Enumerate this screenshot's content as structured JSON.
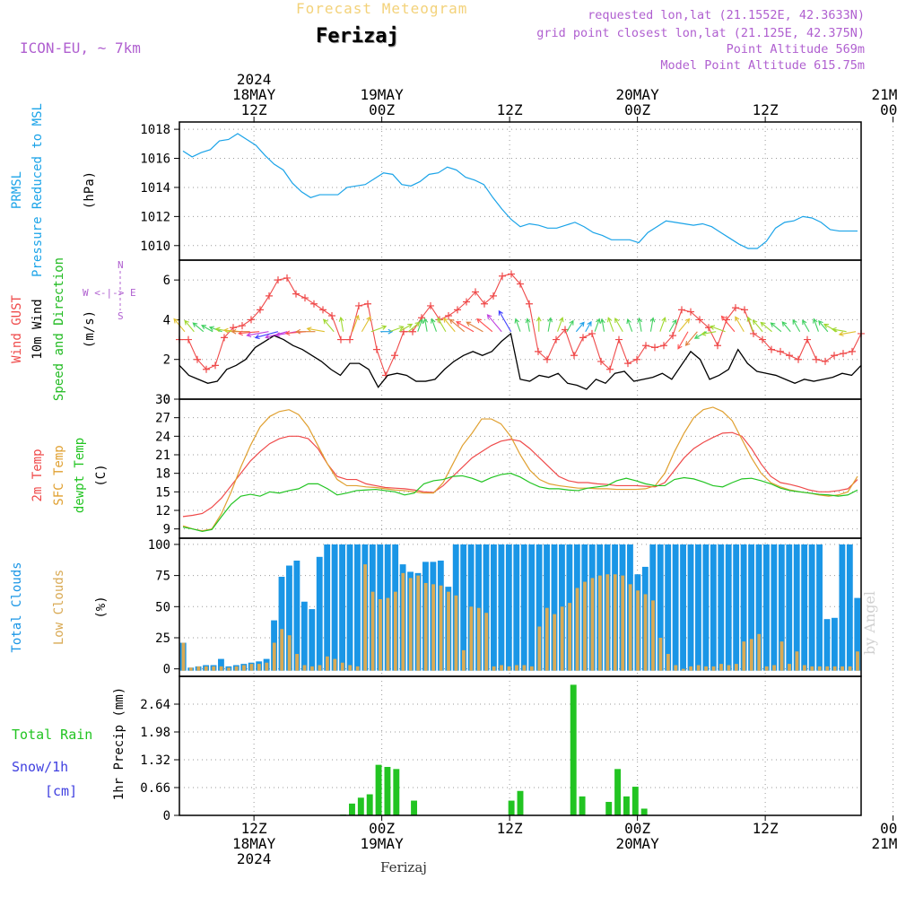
{
  "header": {
    "product": "Forecast Meteogram",
    "station": "Ferizaj",
    "model": "ICON-EU, ~ 7km",
    "requested": "requested lon,lat (21.1552E, 42.3633N)",
    "grid_point": "grid point closest lon,lat (21.125E, 42.375N)",
    "point_altitude": "Point Altitude 569m",
    "model_altitude": "Model Point Altitude 615.75m",
    "watermark": "by Angel",
    "footer_station": "Ferizaj"
  },
  "colors": {
    "pressure": "#1aa3e8",
    "gust": "#ef4a4a",
    "wind": "#000000",
    "dir_label": "#22bb22",
    "temp2m": "#ef4a4a",
    "sfc": "#e0a030",
    "dewpt": "#22c422",
    "total_clouds": "#1a96e6",
    "low_clouds": "#d9aa55",
    "rain": "#22c422",
    "snow_label": "#4040e0",
    "compass": "#b060d0"
  },
  "chart_data": {
    "type": "meteogram",
    "time_axis": {
      "start": "2024-05-18 05Z",
      "hours": 64,
      "top_labels": [
        {
          "h": 7,
          "lines": [
            "2024",
            "18MAY",
            "12Z"
          ]
        },
        {
          "h": 19,
          "lines": [
            "19MAY",
            "00Z"
          ]
        },
        {
          "h": 31,
          "lines": [
            "12Z"
          ]
        },
        {
          "h": 43,
          "lines": [
            "20MAY",
            "00Z"
          ]
        },
        {
          "h": 55,
          "lines": [
            "12Z"
          ]
        },
        {
          "h": 67,
          "lines": [
            "21MAY",
            "00Z"
          ]
        }
      ],
      "bottom_labels": [
        {
          "h": 7,
          "lines": [
            "12Z",
            "18MAY",
            "2024"
          ]
        },
        {
          "h": 19,
          "lines": [
            "00Z",
            "19MAY"
          ]
        },
        {
          "h": 31,
          "lines": [
            "12Z"
          ]
        },
        {
          "h": 43,
          "lines": [
            "00Z",
            "20MAY"
          ]
        },
        {
          "h": 55,
          "lines": [
            "12Z"
          ]
        },
        {
          "h": 67,
          "lines": [
            "00Z",
            "21MAY"
          ]
        }
      ]
    },
    "panels": [
      {
        "id": "pressure",
        "type": "line",
        "ylabels": [
          "PRMSL",
          "Pressure Reduced to MSL",
          "(hPa)"
        ],
        "ylim": [
          1009,
          1018.5
        ],
        "ticks": [
          "1010",
          "1012",
          "1014",
          "1016",
          "1018"
        ],
        "series": [
          {
            "name": "PRMSL",
            "values": [
              1016.5,
              1016.1,
              1016.4,
              1016.6,
              1017.2,
              1017.3,
              1017.7,
              1017.3,
              1016.9,
              1016.2,
              1015.6,
              1015.2,
              1014.3,
              1013.7,
              1013.3,
              1013.5,
              1013.5,
              1013.5,
              1014.0,
              1014.1,
              1014.2,
              1014.6,
              1015.0,
              1014.9,
              1014.2,
              1014.1,
              1014.4,
              1014.9,
              1015.0,
              1015.4,
              1015.2,
              1014.7,
              1014.5,
              1014.2,
              1013.3,
              1012.5,
              1011.8,
              1011.3,
              1011.5,
              1011.4,
              1011.2,
              1011.2,
              1011.4,
              1011.6,
              1011.3,
              1010.9,
              1010.7,
              1010.4,
              1010.4,
              1010.4,
              1010.2,
              1010.9,
              1011.3,
              1011.7,
              1011.6,
              1011.5,
              1011.4,
              1011.5,
              1011.3,
              1010.9,
              1010.5,
              1010.1,
              1009.8,
              1009.8,
              1010.3,
              1011.2,
              1011.6,
              1011.7,
              1012.0,
              1011.9,
              1011.6,
              1011.1,
              1011.0,
              1011.0,
              1011.0
            ]
          }
        ]
      },
      {
        "id": "wind",
        "type": "line",
        "ylabels": [
          "Wind GUST",
          "10m Wind",
          "Speed and Direction",
          "(m/s)"
        ],
        "ylim": [
          0,
          7
        ],
        "ticks": [
          "0",
          "2",
          "4",
          "6"
        ],
        "compass": [
          "N",
          "W <-|-> E",
          "S"
        ],
        "series": [
          {
            "name": "Wind GUST",
            "values": [
              3.0,
              3.0,
              2.0,
              1.5,
              1.7,
              3.1,
              3.6,
              3.7,
              4.0,
              4.5,
              5.2,
              6.0,
              6.1,
              5.3,
              5.1,
              4.8,
              4.5,
              4.2,
              3.0,
              3.0,
              4.7,
              4.8,
              2.5,
              1.2,
              2.2,
              3.4,
              3.4,
              4.1,
              4.7,
              4.0,
              4.2,
              4.5,
              4.9,
              5.4,
              4.8,
              5.2,
              6.2,
              6.3,
              5.8,
              4.8,
              2.4,
              2.0,
              3.0,
              3.5,
              2.2,
              3.1,
              3.3,
              1.9,
              1.5,
              3.0,
              1.8,
              2.0,
              2.7,
              2.6,
              2.7,
              3.2,
              4.5,
              4.4,
              4.0,
              3.6,
              2.7,
              4.0,
              4.6,
              4.5,
              3.3,
              3.0,
              2.5,
              2.4,
              2.2,
              2.0,
              3.0,
              2.0,
              1.9,
              2.2,
              2.3,
              2.4,
              3.3
            ]
          },
          {
            "name": "10m Wind",
            "values": [
              1.7,
              1.2,
              1.0,
              0.8,
              0.9,
              1.5,
              1.7,
              2.0,
              2.6,
              2.9,
              3.2,
              3.0,
              2.7,
              2.5,
              2.2,
              1.9,
              1.5,
              1.2,
              1.8,
              1.8,
              1.5,
              0.6,
              1.2,
              1.3,
              1.2,
              0.9,
              0.9,
              1.0,
              1.5,
              1.9,
              2.2,
              2.4,
              2.2,
              2.4,
              2.9,
              3.3,
              1.0,
              0.9,
              1.2,
              1.1,
              1.3,
              0.8,
              0.7,
              0.5,
              1.0,
              0.8,
              1.3,
              1.4,
              0.9,
              1.0,
              1.1,
              1.3,
              1.0,
              1.7,
              2.4,
              2.0,
              1.0,
              1.2,
              1.5,
              2.5,
              1.8,
              1.4,
              1.3,
              1.2,
              1.0,
              0.8,
              1.0,
              0.9,
              1.0,
              1.1,
              1.3,
              1.2,
              1.7
            ]
          },
          {
            "name": "Direction (deg, from)",
            "values": [
              140,
              140,
              130,
              120,
              110,
              100,
              95,
              90,
              85,
              80,
              75,
              75,
              80,
              85,
              90,
              100,
              140,
              170,
              200,
              210,
              250,
              270,
              250,
              240,
              230,
              200,
              170,
              160,
              150,
              140,
              130,
              120,
              120,
              130,
              140,
              150,
              160,
              170,
              180,
              190,
              200,
              210,
              220,
              210,
              200,
              170,
              160,
              150,
              160,
              170,
              190,
              200,
              210,
              220,
              30,
              40,
              60,
              80,
              110,
              140,
              150,
              160,
              140,
              130,
              130,
              140,
              150,
              150,
              160,
              140,
              120,
              100,
              80
            ]
          }
        ]
      },
      {
        "id": "temperature",
        "type": "line",
        "ylabels": [
          "2m Temp",
          "SFC Temp",
          "dewpt Temp",
          "(C)"
        ],
        "ylim": [
          7.5,
          30
        ],
        "ticks": [
          "9",
          "12",
          "15",
          "18",
          "21",
          "24",
          "27",
          "30"
        ],
        "series": [
          {
            "name": "2m Temp",
            "values": [
              11.0,
              11.2,
              11.5,
              12.5,
              14.0,
              16.0,
              18.0,
              20.0,
              21.5,
              22.8,
              23.6,
              24.0,
              24.0,
              23.6,
              22.0,
              19.5,
              17.5,
              17.0,
              17.0,
              16.3,
              16.0,
              15.7,
              15.6,
              15.5,
              15.3,
              15.0,
              14.9,
              16.0,
              17.5,
              19.0,
              20.5,
              21.5,
              22.5,
              23.2,
              23.5,
              23.2,
              22.0,
              20.5,
              19.0,
              17.5,
              16.8,
              16.5,
              16.5,
              16.3,
              16.2,
              16.0,
              16.0,
              16.0,
              15.9,
              15.8,
              16.5,
              18.5,
              20.5,
              22.0,
              23.0,
              23.8,
              24.5,
              24.6,
              24.0,
              22.0,
              19.5,
              17.5,
              16.5,
              16.2,
              15.8,
              15.3,
              15.0,
              15.0,
              15.2,
              15.5,
              17.0
            ]
          },
          {
            "name": "SFC Temp",
            "values": [
              9.5,
              9.0,
              8.7,
              9.0,
              11.5,
              15.0,
              19.0,
              22.5,
              25.5,
              27.2,
              28.0,
              28.3,
              27.5,
              25.5,
              22.5,
              19.5,
              17.0,
              16.0,
              16.0,
              15.8,
              15.7,
              15.5,
              15.3,
              15.2,
              15.0,
              14.8,
              14.8,
              16.5,
              19.5,
              22.5,
              24.5,
              26.8,
              26.8,
              26.0,
              24.0,
              21.0,
              18.5,
              17.0,
              16.3,
              16.0,
              15.8,
              15.6,
              15.6,
              15.5,
              15.5,
              15.4,
              15.4,
              15.4,
              15.5,
              16.0,
              18.0,
              21.5,
              24.5,
              27.0,
              28.3,
              28.7,
              28.0,
              26.5,
              23.5,
              20.5,
              18.0,
              16.5,
              15.8,
              15.3,
              15.0,
              14.8,
              14.5,
              14.3,
              14.5,
              15.0,
              17.5
            ]
          },
          {
            "name": "dewpt Temp",
            "values": [
              9.3,
              9.0,
              8.6,
              8.9,
              11.0,
              13.0,
              14.3,
              14.6,
              14.3,
              15.0,
              14.8,
              15.2,
              15.5,
              16.3,
              16.3,
              15.5,
              14.5,
              14.8,
              15.2,
              15.3,
              15.4,
              15.2,
              15.0,
              14.5,
              14.8,
              16.3,
              16.8,
              17.0,
              17.5,
              17.6,
              17.2,
              16.6,
              17.3,
              17.8,
              18.0,
              17.4,
              16.5,
              15.8,
              15.5,
              15.5,
              15.3,
              15.2,
              15.6,
              15.8,
              16.0,
              16.8,
              17.2,
              16.8,
              16.3,
              16.0,
              16.0,
              17.0,
              17.3,
              17.1,
              16.6,
              16.0,
              15.8,
              16.5,
              17.1,
              17.2,
              16.8,
              16.3,
              15.6,
              15.2,
              15.0,
              14.8,
              14.6,
              14.5,
              14.3,
              14.5,
              15.3
            ]
          }
        ]
      },
      {
        "id": "clouds",
        "type": "bar",
        "ylabels": [
          "Total Clouds",
          "Low Clouds",
          "(%)"
        ],
        "ylim": [
          -6,
          105
        ],
        "ticks": [
          "0",
          "25",
          "50",
          "75",
          "100"
        ],
        "series": [
          {
            "name": "Total Clouds",
            "values": [
              21,
              1,
              2,
              3,
              3,
              8,
              2,
              3,
              4,
              5,
              6,
              8,
              39,
              74,
              83,
              87,
              54,
              48,
              90,
              100,
              100,
              100,
              100,
              100,
              100,
              100,
              100,
              100,
              100,
              84,
              78,
              77,
              86,
              86,
              87,
              66,
              100,
              100,
              100,
              100,
              100,
              100,
              100,
              100,
              100,
              100,
              100,
              100,
              100,
              100,
              100,
              100,
              100,
              100,
              100,
              100,
              100,
              100,
              100,
              100,
              76,
              82,
              100,
              100,
              100,
              100,
              100,
              100,
              100,
              100,
              100,
              100,
              100,
              100,
              100,
              100,
              100,
              100,
              100,
              100,
              100,
              100,
              100,
              100,
              100,
              40,
              41,
              100,
              100,
              57
            ]
          },
          {
            "name": "Low Clouds",
            "values": [
              21,
              1,
              2,
              2,
              2,
              2,
              1,
              2,
              3,
              4,
              4,
              5,
              21,
              32,
              27,
              12,
              3,
              2,
              3,
              10,
              8,
              5,
              3,
              2,
              84,
              62,
              56,
              57,
              62,
              77,
              73,
              75,
              69,
              68,
              67,
              62,
              59,
              15,
              50,
              49,
              45,
              2,
              3,
              2,
              3,
              3,
              2,
              34,
              49,
              44,
              50,
              53,
              65,
              70,
              73,
              75,
              76,
              76,
              75,
              68,
              63,
              60,
              55,
              25,
              12,
              3,
              0,
              2,
              3,
              2,
              2,
              4,
              3,
              4,
              22,
              24,
              28,
              2,
              3,
              22,
              4,
              14,
              3,
              2,
              2,
              2,
              2,
              2,
              2,
              14
            ]
          }
        ]
      },
      {
        "id": "precip",
        "type": "bar",
        "ylabels": [
          "Total Rain",
          "Snow/1h",
          "[cm]",
          "1hr Precip (mm)"
        ],
        "ylim": [
          0,
          3.3
        ],
        "ticks": [
          "0",
          "0.66",
          "1.32",
          "1.98",
          "2.64"
        ],
        "series": [
          {
            "name": "Total Rain",
            "values": [
              0,
              0,
              0,
              0,
              0,
              0,
              0,
              0,
              0,
              0,
              0,
              0,
              0,
              0,
              0,
              0,
              0,
              0,
              0.02,
              0.28,
              0.42,
              0.5,
              1.2,
              1.15,
              1.1,
              0,
              0.35,
              0,
              0,
              0,
              0,
              0,
              0,
              0,
              0,
              0,
              0,
              0.35,
              0.58,
              0,
              0,
              0,
              0,
              0,
              3.1,
              0.45,
              0,
              0,
              0.32,
              1.1,
              0.45,
              0.68,
              0.16,
              0,
              0,
              0,
              0,
              0,
              0,
              0,
              0,
              0,
              0,
              0,
              0,
              0,
              0,
              0,
              0,
              0,
              0,
              0,
              0,
              0,
              0,
              0,
              0
            ]
          }
        ]
      }
    ]
  }
}
